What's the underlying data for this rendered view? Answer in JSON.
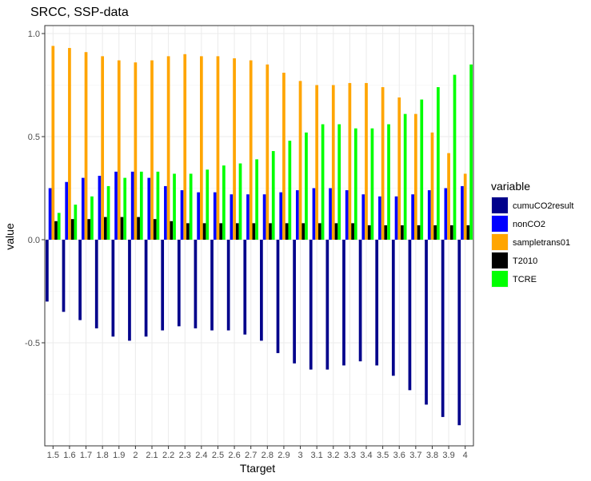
{
  "chart_data": {
    "type": "bar",
    "title": "SRCC, SSP-data",
    "xlabel": "Ttarget",
    "ylabel": "value",
    "ylim": [
      -1.0,
      1.0
    ],
    "yticks": [
      {
        "value": 1.0,
        "label": "1.0"
      },
      {
        "value": 0.5,
        "label": "0.5"
      },
      {
        "value": 0.0,
        "label": "0.0"
      },
      {
        "value": -0.5,
        "label": "-0.5"
      }
    ],
    "grid": true,
    "legend": {
      "title": "variable",
      "position": "right"
    },
    "categories": [
      "1.5",
      "1.6",
      "1.7",
      "1.8",
      "1.9",
      "2",
      "2.1",
      "2.2",
      "2.3",
      "2.4",
      "2.5",
      "2.6",
      "2.7",
      "2.8",
      "2.9",
      "3",
      "3.1",
      "3.2",
      "3.3",
      "3.4",
      "3.5",
      "3.6",
      "3.7",
      "3.8",
      "3.9",
      "4"
    ],
    "series": [
      {
        "name": "cumuCO2result",
        "color": "#00008b",
        "values": [
          -0.3,
          -0.35,
          -0.39,
          -0.43,
          -0.47,
          -0.49,
          -0.47,
          -0.44,
          -0.42,
          -0.43,
          -0.44,
          -0.44,
          -0.46,
          -0.49,
          -0.55,
          -0.6,
          -0.63,
          -0.63,
          -0.61,
          -0.59,
          -0.61,
          -0.66,
          -0.73,
          -0.8,
          -0.86,
          -0.9
        ]
      },
      {
        "name": "nonCO2",
        "color": "#0000ff",
        "values": [
          0.25,
          0.28,
          0.3,
          0.31,
          0.33,
          0.33,
          0.3,
          0.26,
          0.24,
          0.23,
          0.23,
          0.22,
          0.22,
          0.22,
          0.23,
          0.24,
          0.25,
          0.25,
          0.24,
          0.22,
          0.21,
          0.21,
          0.22,
          0.24,
          0.25,
          0.26
        ]
      },
      {
        "name": "sampletrans01",
        "color": "#ffa500",
        "values": [
          0.94,
          0.93,
          0.91,
          0.89,
          0.87,
          0.86,
          0.87,
          0.89,
          0.9,
          0.89,
          0.89,
          0.88,
          0.87,
          0.85,
          0.81,
          0.77,
          0.75,
          0.75,
          0.76,
          0.76,
          0.74,
          0.69,
          0.61,
          0.52,
          0.42,
          0.32
        ]
      },
      {
        "name": "T2010",
        "color": "#000000",
        "values": [
          0.09,
          0.1,
          0.1,
          0.11,
          0.11,
          0.11,
          0.1,
          0.09,
          0.08,
          0.08,
          0.08,
          0.08,
          0.08,
          0.08,
          0.08,
          0.08,
          0.08,
          0.08,
          0.08,
          0.07,
          0.07,
          0.07,
          0.07,
          0.07,
          0.07,
          0.07
        ]
      },
      {
        "name": "TCRE",
        "color": "#00ff00",
        "values": [
          0.13,
          0.17,
          0.21,
          0.26,
          0.3,
          0.33,
          0.33,
          0.32,
          0.32,
          0.34,
          0.36,
          0.37,
          0.39,
          0.43,
          0.48,
          0.52,
          0.56,
          0.56,
          0.54,
          0.54,
          0.56,
          0.61,
          0.68,
          0.74,
          0.8,
          0.85
        ]
      }
    ]
  }
}
